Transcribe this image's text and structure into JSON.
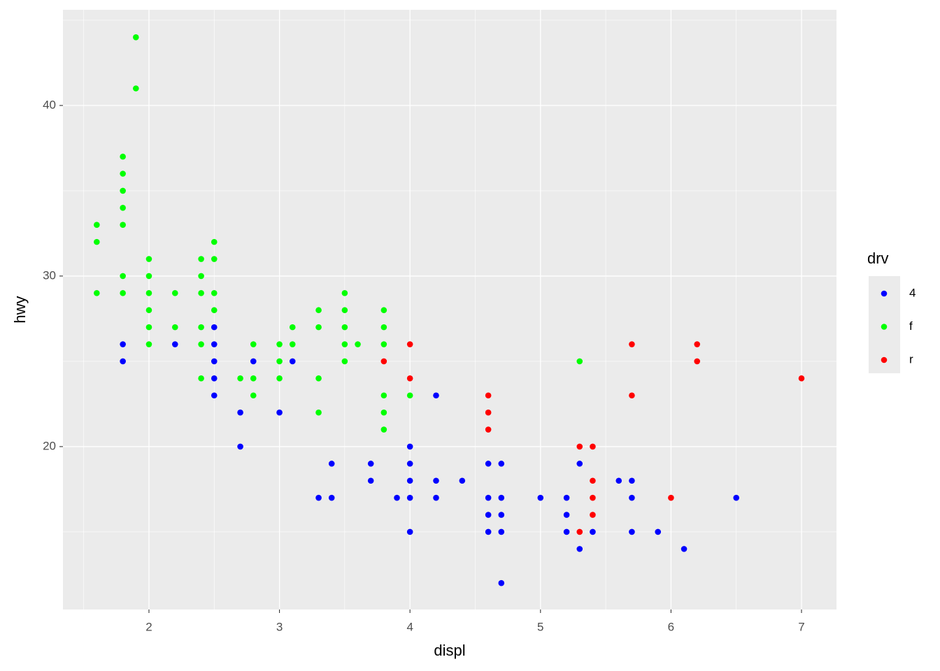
{
  "chart_data": {
    "type": "scatter",
    "x_label": "displ",
    "y_label": "hwy",
    "xlim": [
      1.341,
      7.268
    ],
    "ylim": [
      10.45,
      45.61
    ],
    "xticks": [
      2,
      3,
      4,
      5,
      6,
      7
    ],
    "yticks": [
      20,
      30,
      40
    ],
    "x_minor_grid": [
      1.5,
      2.5,
      3.5,
      4.5,
      5.5,
      6.5
    ],
    "y_minor_grid": [
      15,
      25,
      35,
      45
    ],
    "grid": true,
    "legend_title": "drv",
    "legend_position": "right",
    "series": [
      {
        "name": "4",
        "color": "#0000ff",
        "x": [
          1.8,
          1.8,
          2.2,
          2.5,
          2.5,
          2.5,
          2.5,
          2.5,
          2.7,
          2.7,
          2.8,
          3.0,
          3.1,
          3.3,
          3.4,
          3.4,
          3.7,
          3.7,
          3.9,
          4.0,
          4.0,
          4.0,
          4.0,
          4.0,
          4.2,
          4.2,
          4.2,
          4.4,
          4.6,
          4.6,
          4.6,
          4.6,
          4.7,
          4.7,
          4.7,
          4.7,
          4.7,
          5.0,
          5.2,
          5.2,
          5.2,
          5.3,
          5.3,
          5.4,
          5.6,
          5.7,
          5.7,
          5.7,
          5.9,
          6.1,
          6.5
        ],
        "values": [
          26,
          25,
          26,
          27,
          26,
          25,
          24,
          23,
          22,
          20,
          25,
          22,
          25,
          17,
          19,
          17,
          19,
          18,
          17,
          20,
          19,
          18,
          17,
          15,
          23,
          18,
          17,
          18,
          19,
          17,
          16,
          15,
          19,
          17,
          16,
          15,
          12,
          17,
          17,
          16,
          15,
          19,
          14,
          15,
          18,
          18,
          17,
          15,
          15,
          14,
          17
        ]
      },
      {
        "name": "f",
        "color": "#00ff00",
        "x": [
          1.6,
          1.6,
          1.6,
          1.8,
          1.8,
          1.8,
          1.8,
          1.8,
          1.8,
          1.8,
          1.9,
          1.9,
          2.0,
          2.0,
          2.0,
          2.0,
          2.0,
          2.0,
          2.2,
          2.2,
          2.4,
          2.4,
          2.4,
          2.4,
          2.4,
          2.4,
          2.5,
          2.5,
          2.5,
          2.5,
          2.7,
          2.8,
          2.8,
          2.8,
          3.0,
          3.0,
          3.0,
          3.1,
          3.1,
          3.3,
          3.3,
          3.3,
          3.3,
          3.5,
          3.5,
          3.5,
          3.5,
          3.5,
          3.6,
          3.8,
          3.8,
          3.8,
          3.8,
          3.8,
          3.8,
          4.0,
          5.3
        ],
        "values": [
          33,
          32,
          29,
          37,
          36,
          35,
          34,
          33,
          30,
          29,
          44,
          41,
          31,
          30,
          29,
          28,
          27,
          26,
          29,
          27,
          31,
          30,
          29,
          27,
          26,
          24,
          32,
          31,
          29,
          28,
          24,
          26,
          24,
          23,
          26,
          25,
          24,
          27,
          26,
          28,
          27,
          24,
          22,
          29,
          28,
          27,
          26,
          25,
          26,
          28,
          27,
          26,
          23,
          22,
          21,
          23,
          25
        ]
      },
      {
        "name": "r",
        "color": "#ff0000",
        "x": [
          3.8,
          4.0,
          4.0,
          4.6,
          4.6,
          4.6,
          5.3,
          5.3,
          5.4,
          5.4,
          5.4,
          5.4,
          5.7,
          5.7,
          6.0,
          6.2,
          6.2,
          7.0
        ],
        "values": [
          25,
          26,
          24,
          23,
          22,
          21,
          20,
          15,
          20,
          18,
          17,
          16,
          26,
          23,
          17,
          26,
          25,
          24
        ]
      }
    ]
  }
}
